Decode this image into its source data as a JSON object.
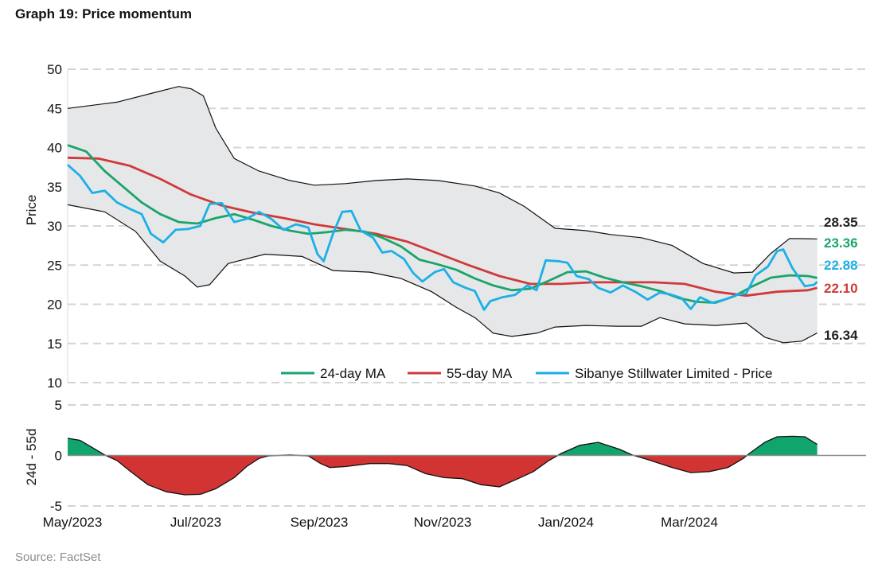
{
  "header": {
    "title": "Graph 19: Price momentum"
  },
  "footer": {
    "source": "Source: FactSet"
  },
  "colors": {
    "ma24": "#19a56b",
    "ma55": "#cf3a3a",
    "price": "#1bb0e6",
    "band": "#e6e7e9",
    "bandLine": "#111111",
    "osc_pos": "#0fa56c",
    "osc_neg": "#d23434",
    "grid": "#d4d4d4"
  },
  "chart_data": [
    {
      "type": "line",
      "ylabel": "Price",
      "ylim": [
        10,
        50
      ],
      "yticks": [
        10,
        15,
        20,
        25,
        30,
        35,
        40,
        45,
        50
      ],
      "xlim": [
        0,
        11.2
      ],
      "x_unit": "months since May/2023",
      "xtick_labels": [
        "May/2023",
        "Jul/2023",
        "Sep/2023",
        "Nov/2023",
        "Jan/2024",
        "Mar/2024"
      ],
      "xtick_positions": [
        0,
        2,
        4,
        6,
        8,
        10
      ],
      "grid": "horizontal dashed",
      "legend": {
        "position": "bottom-right"
      },
      "series": [
        {
          "name": "24-day MA",
          "color_key": "ma24",
          "end_label": "23.36",
          "points": [
            [
              0,
              40.3
            ],
            [
              0.3,
              39.5
            ],
            [
              0.6,
              37
            ],
            [
              0.9,
              35
            ],
            [
              1.2,
              33
            ],
            [
              1.5,
              31.5
            ],
            [
              1.8,
              30.5
            ],
            [
              2.1,
              30.3
            ],
            [
              2.4,
              31
            ],
            [
              2.7,
              31.5
            ],
            [
              3.0,
              30.8
            ],
            [
              3.3,
              30
            ],
            [
              3.6,
              29.4
            ],
            [
              3.9,
              29
            ],
            [
              4.2,
              29.2
            ],
            [
              4.5,
              29.5
            ],
            [
              4.8,
              29.3
            ],
            [
              5.1,
              28.5
            ],
            [
              5.4,
              27.4
            ],
            [
              5.7,
              25.7
            ],
            [
              6.0,
              25.1
            ],
            [
              6.3,
              24.4
            ],
            [
              6.6,
              23.3
            ],
            [
              6.9,
              22.4
            ],
            [
              7.2,
              21.8
            ],
            [
              7.5,
              22
            ],
            [
              7.8,
              23
            ],
            [
              8.1,
              24.1
            ],
            [
              8.4,
              24.2
            ],
            [
              8.7,
              23.4
            ],
            [
              9.0,
              22.8
            ],
            [
              9.3,
              22.3
            ],
            [
              9.6,
              21.7
            ],
            [
              9.9,
              20.8
            ],
            [
              10.2,
              20.3
            ],
            [
              10.5,
              20.2
            ],
            [
              10.8,
              21
            ],
            [
              11.1,
              22.3
            ],
            [
              11.4,
              23.4
            ],
            [
              11.7,
              23.7
            ],
            [
              12.0,
              23.6
            ],
            [
              12.15,
              23.36
            ]
          ]
        },
        {
          "name": "55-day MA",
          "color_key": "ma55",
          "end_label": "22.10",
          "points": [
            [
              0,
              38.7
            ],
            [
              0.5,
              38.6
            ],
            [
              1.0,
              37.7
            ],
            [
              1.5,
              36
            ],
            [
              2.0,
              34
            ],
            [
              2.5,
              32.6
            ],
            [
              3.0,
              31.7
            ],
            [
              3.5,
              31
            ],
            [
              4.0,
              30.2
            ],
            [
              4.5,
              29.6
            ],
            [
              5.0,
              29
            ],
            [
              5.5,
              28
            ],
            [
              6.0,
              26.5
            ],
            [
              6.5,
              25
            ],
            [
              7.0,
              23.6
            ],
            [
              7.5,
              22.6
            ],
            [
              8.0,
              22.6
            ],
            [
              8.5,
              22.8
            ],
            [
              9.0,
              22.8
            ],
            [
              9.5,
              22.8
            ],
            [
              10.0,
              22.6
            ],
            [
              10.5,
              21.6
            ],
            [
              11.0,
              21.1
            ],
            [
              11.5,
              21.6
            ],
            [
              12.0,
              21.8
            ],
            [
              12.15,
              22.1
            ]
          ]
        },
        {
          "name": "Sibanye Stillwater Limited - Price",
          "color_key": "price",
          "end_label": "22.88",
          "points": [
            [
              0,
              37.8
            ],
            [
              0.2,
              36.4
            ],
            [
              0.4,
              34.2
            ],
            [
              0.6,
              34.5
            ],
            [
              0.8,
              33
            ],
            [
              1.0,
              32.2
            ],
            [
              1.2,
              31.5
            ],
            [
              1.35,
              29
            ],
            [
              1.55,
              27.9
            ],
            [
              1.75,
              29.5
            ],
            [
              1.95,
              29.6
            ],
            [
              2.15,
              30
            ],
            [
              2.3,
              32.8
            ],
            [
              2.5,
              32.9
            ],
            [
              2.7,
              30.5
            ],
            [
              2.9,
              30.9
            ],
            [
              3.1,
              31.8
            ],
            [
              3.3,
              30.9
            ],
            [
              3.5,
              29.5
            ],
            [
              3.7,
              30.2
            ],
            [
              3.9,
              29.8
            ],
            [
              4.05,
              26.4
            ],
            [
              4.15,
              25.5
            ],
            [
              4.3,
              29
            ],
            [
              4.45,
              31.8
            ],
            [
              4.6,
              31.9
            ],
            [
              4.75,
              29.4
            ],
            [
              4.95,
              28.5
            ],
            [
              5.1,
              26.6
            ],
            [
              5.25,
              26.8
            ],
            [
              5.45,
              25.8
            ],
            [
              5.6,
              24
            ],
            [
              5.75,
              22.9
            ],
            [
              5.95,
              24.1
            ],
            [
              6.1,
              24.5
            ],
            [
              6.25,
              22.8
            ],
            [
              6.45,
              22.1
            ],
            [
              6.6,
              21.7
            ],
            [
              6.75,
              19.3
            ],
            [
              6.85,
              20.4
            ],
            [
              7.05,
              20.9
            ],
            [
              7.25,
              21.2
            ],
            [
              7.45,
              22.4
            ],
            [
              7.6,
              21.8
            ],
            [
              7.75,
              25.6
            ],
            [
              7.95,
              25.5
            ],
            [
              8.1,
              25.3
            ],
            [
              8.25,
              23.6
            ],
            [
              8.45,
              23.2
            ],
            [
              8.6,
              22.1
            ],
            [
              8.8,
              21.5
            ],
            [
              9.0,
              22.4
            ],
            [
              9.2,
              21.6
            ],
            [
              9.4,
              20.6
            ],
            [
              9.6,
              21.5
            ],
            [
              9.75,
              21.3
            ],
            [
              9.95,
              20.8
            ],
            [
              10.1,
              19.4
            ],
            [
              10.25,
              20.9
            ],
            [
              10.45,
              20.2
            ],
            [
              10.65,
              20.6
            ],
            [
              10.85,
              21.2
            ],
            [
              11.0,
              21.4
            ],
            [
              11.15,
              23.7
            ],
            [
              11.35,
              24.8
            ],
            [
              11.5,
              26.8
            ],
            [
              11.6,
              27
            ],
            [
              11.75,
              24.6
            ],
            [
              11.95,
              22.3
            ],
            [
              12.1,
              22.5
            ],
            [
              12.15,
              22.88
            ]
          ]
        },
        {
          "name": "Upper band",
          "color_key": "bandLine",
          "end_label": "28.35",
          "points": [
            [
              0,
              45
            ],
            [
              0.8,
              45.8
            ],
            [
              1.4,
              47
            ],
            [
              1.8,
              47.8
            ],
            [
              2.0,
              47.5
            ],
            [
              2.2,
              46.6
            ],
            [
              2.4,
              42.5
            ],
            [
              2.7,
              38.6
            ],
            [
              3.1,
              37
            ],
            [
              3.6,
              35.8
            ],
            [
              4.0,
              35.2
            ],
            [
              4.5,
              35.4
            ],
            [
              5.0,
              35.8
            ],
            [
              5.5,
              36
            ],
            [
              6.0,
              35.8
            ],
            [
              6.6,
              35.1
            ],
            [
              7.0,
              34.2
            ],
            [
              7.4,
              32.5
            ],
            [
              7.9,
              29.7
            ],
            [
              8.4,
              29.4
            ],
            [
              8.8,
              28.9
            ],
            [
              9.3,
              28.5
            ],
            [
              9.8,
              27.5
            ],
            [
              10.3,
              25.2
            ],
            [
              10.8,
              24
            ],
            [
              11.1,
              24.1
            ],
            [
              11.4,
              26.5
            ],
            [
              11.7,
              28.4
            ],
            [
              12.15,
              28.35
            ]
          ]
        },
        {
          "name": "Lower band",
          "color_key": "bandLine",
          "end_label": "16.34",
          "points": [
            [
              0,
              32.7
            ],
            [
              0.6,
              31.8
            ],
            [
              1.1,
              29.3
            ],
            [
              1.5,
              25.5
            ],
            [
              1.9,
              23.6
            ],
            [
              2.1,
              22.2
            ],
            [
              2.3,
              22.5
            ],
            [
              2.6,
              25.2
            ],
            [
              3.2,
              26.4
            ],
            [
              3.8,
              26.1
            ],
            [
              4.3,
              24.3
            ],
            [
              4.9,
              24.1
            ],
            [
              5.4,
              23.3
            ],
            [
              5.9,
              21.6
            ],
            [
              6.3,
              19.6
            ],
            [
              6.6,
              18.3
            ],
            [
              6.9,
              16.3
            ],
            [
              7.2,
              15.9
            ],
            [
              7.6,
              16.3
            ],
            [
              7.9,
              17.1
            ],
            [
              8.4,
              17.3
            ],
            [
              8.9,
              17.2
            ],
            [
              9.3,
              17.2
            ],
            [
              9.6,
              18.3
            ],
            [
              10.0,
              17.5
            ],
            [
              10.5,
              17.3
            ],
            [
              11.0,
              17.6
            ],
            [
              11.3,
              15.8
            ],
            [
              11.6,
              15.1
            ],
            [
              11.9,
              15.3
            ],
            [
              12.15,
              16.34
            ]
          ]
        }
      ]
    },
    {
      "type": "area",
      "ylabel": "24d - 55d",
      "ylim": [
        -5,
        5
      ],
      "yticks": [
        -5,
        0,
        5
      ],
      "x_unit": "months since May/2023",
      "grid": "horizontal dashed",
      "series": [
        {
          "name": "",
          "color_key": "osc",
          "points": [
            [
              0,
              1.7
            ],
            [
              0.2,
              1.5
            ],
            [
              0.45,
              0.6
            ],
            [
              0.6,
              0.05
            ],
            [
              0.8,
              -0.5
            ],
            [
              1.0,
              -1.5
            ],
            [
              1.3,
              -2.9
            ],
            [
              1.6,
              -3.6
            ],
            [
              1.9,
              -3.9
            ],
            [
              2.15,
              -3.85
            ],
            [
              2.4,
              -3.3
            ],
            [
              2.7,
              -2.2
            ],
            [
              2.9,
              -1.1
            ],
            [
              3.1,
              -0.3
            ],
            [
              3.25,
              -0.05
            ],
            [
              3.6,
              0.05
            ],
            [
              3.9,
              -0.05
            ],
            [
              4.1,
              -0.8
            ],
            [
              4.25,
              -1.2
            ],
            [
              4.5,
              -1.1
            ],
            [
              4.9,
              -0.8
            ],
            [
              5.2,
              -0.8
            ],
            [
              5.5,
              -1.0
            ],
            [
              5.8,
              -1.8
            ],
            [
              6.1,
              -2.2
            ],
            [
              6.4,
              -2.3
            ],
            [
              6.7,
              -2.9
            ],
            [
              7.0,
              -3.1
            ],
            [
              7.3,
              -2.3
            ],
            [
              7.55,
              -1.6
            ],
            [
              7.8,
              -0.5
            ],
            [
              8.0,
              0.2
            ],
            [
              8.3,
              1.0
            ],
            [
              8.6,
              1.3
            ],
            [
              8.95,
              0.6
            ],
            [
              9.15,
              0.05
            ],
            [
              9.4,
              -0.4
            ],
            [
              9.8,
              -1.2
            ],
            [
              10.1,
              -1.7
            ],
            [
              10.4,
              -1.6
            ],
            [
              10.7,
              -1.2
            ],
            [
              10.95,
              -0.3
            ],
            [
              11.05,
              0.2
            ],
            [
              11.3,
              1.3
            ],
            [
              11.5,
              1.85
            ],
            [
              11.75,
              1.9
            ],
            [
              11.95,
              1.85
            ],
            [
              12.15,
              1.1
            ]
          ]
        }
      ]
    }
  ]
}
